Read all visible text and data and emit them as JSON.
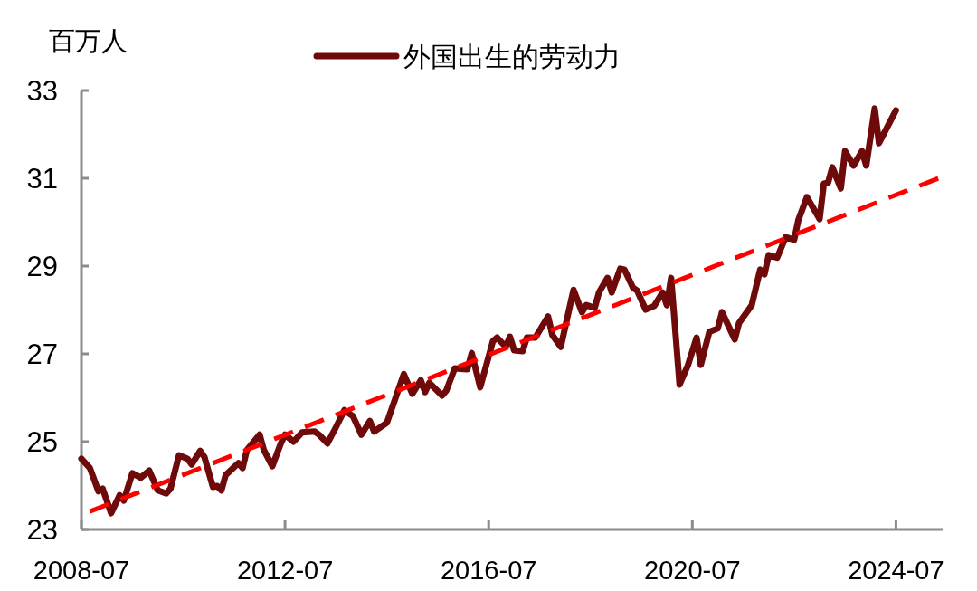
{
  "chart_data": {
    "type": "line",
    "ylabel": "百万人",
    "legend": "top",
    "xlim": [
      "2008-07",
      "2025-06"
    ],
    "xticks": [
      "2008-07",
      "2012-07",
      "2016-07",
      "2020-07",
      "2024-07"
    ],
    "ylim": [
      23,
      33
    ],
    "yticks": [
      23,
      25,
      27,
      29,
      31,
      33
    ],
    "series": [
      {
        "name": "外国出生的劳动力",
        "color": "#6e0a0a",
        "x": [
          "2008-07",
          "2008-09",
          "2008-11",
          "2008-12",
          "2009-02",
          "2009-04",
          "2009-05",
          "2009-07",
          "2009-09",
          "2009-11",
          "2010-01",
          "2010-03",
          "2010-04",
          "2010-06",
          "2010-08",
          "2010-09",
          "2010-11",
          "2010-12",
          "2011-02",
          "2011-03",
          "2011-04",
          "2011-05",
          "2011-08",
          "2011-09",
          "2011-10",
          "2012-01",
          "2012-02",
          "2012-04",
          "2012-06",
          "2012-07",
          "2012-09",
          "2012-11",
          "2013-02",
          "2013-03",
          "2013-05",
          "2013-07",
          "2013-09",
          "2013-11",
          "2014-01",
          "2014-03",
          "2014-04",
          "2014-07",
          "2014-11",
          "2015-01",
          "2015-03",
          "2015-04",
          "2015-05",
          "2015-08",
          "2015-09",
          "2015-11",
          "2016-02",
          "2016-03",
          "2016-05",
          "2016-08",
          "2016-09",
          "2016-11",
          "2016-12",
          "2017-01",
          "2017-03",
          "2017-04",
          "2017-06",
          "2017-09",
          "2017-10",
          "2017-12",
          "2018-03",
          "2018-05",
          "2018-06",
          "2018-08",
          "2018-09",
          "2018-11",
          "2018-12",
          "2019-02",
          "2019-03",
          "2019-05",
          "2019-06",
          "2019-08",
          "2019-10",
          "2019-12",
          "2020-01",
          "2020-02",
          "2020-04",
          "2020-06",
          "2020-08",
          "2020-09",
          "2020-11",
          "2021-01",
          "2021-02",
          "2021-05",
          "2021-06",
          "2021-09",
          "2021-11",
          "2021-12",
          "2022-01",
          "2022-03",
          "2022-05",
          "2022-07",
          "2022-08",
          "2022-10",
          "2023-01",
          "2023-02",
          "2023-03",
          "2023-04",
          "2023-06",
          "2023-07",
          "2023-09",
          "2023-11",
          "2023-12",
          "2024-02",
          "2024-03",
          "2024-07"
        ],
        "values": [
          24.61,
          24.4,
          23.87,
          23.93,
          23.37,
          23.78,
          23.66,
          24.28,
          24.18,
          24.34,
          23.89,
          23.82,
          23.93,
          24.69,
          24.61,
          24.48,
          24.79,
          24.65,
          23.97,
          23.99,
          23.89,
          24.24,
          24.51,
          24.4,
          24.81,
          25.16,
          24.81,
          24.44,
          24.96,
          25.16,
          25.0,
          25.21,
          25.23,
          25.16,
          24.96,
          25.33,
          25.72,
          25.58,
          25.16,
          25.47,
          25.23,
          25.43,
          26.54,
          26.09,
          26.4,
          26.13,
          26.34,
          26.05,
          26.16,
          26.67,
          26.65,
          27.02,
          26.24,
          27.29,
          27.37,
          27.16,
          27.39,
          27.08,
          27.06,
          27.37,
          27.37,
          27.85,
          27.43,
          27.16,
          28.46,
          27.95,
          28.11,
          28.05,
          28.4,
          28.73,
          28.4,
          28.94,
          28.92,
          28.51,
          28.44,
          28.01,
          28.09,
          28.4,
          28.11,
          28.73,
          26.3,
          26.75,
          27.37,
          26.75,
          27.5,
          27.58,
          27.95,
          27.33,
          27.7,
          28.11,
          28.92,
          28.81,
          29.25,
          29.19,
          29.66,
          29.6,
          30.05,
          30.57,
          30.07,
          30.88,
          30.9,
          31.25,
          30.77,
          31.62,
          31.29,
          31.62,
          31.29,
          32.59,
          31.8,
          32.55
        ]
      },
      {
        "type": "line",
        "color": "#ff0000",
        "line_style": "dashed",
        "x": [
          "2008-09",
          "2025-05"
        ],
        "values": [
          23.41,
          31.0
        ]
      }
    ]
  }
}
